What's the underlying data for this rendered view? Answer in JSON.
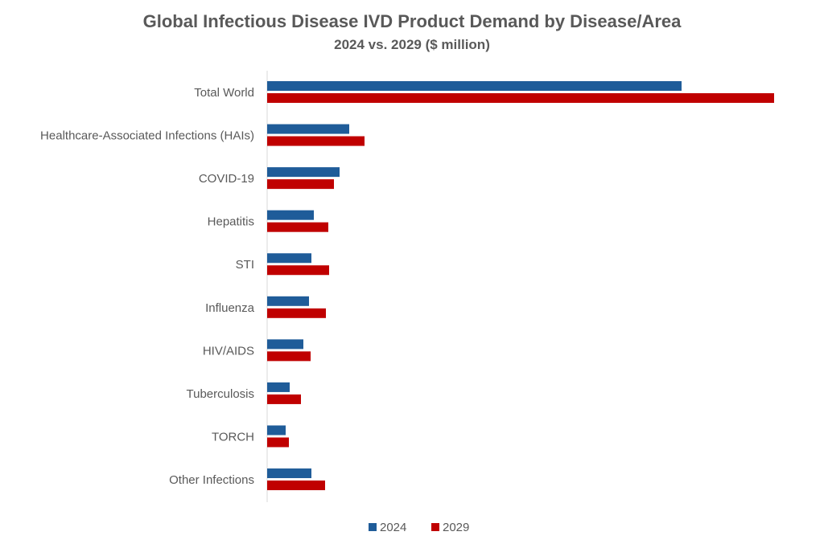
{
  "chart_data": {
    "type": "bar",
    "orientation": "horizontal",
    "title": "Global Infectious Disease IVD Product Demand by Disease/Area",
    "subtitle": "2024 vs. 2029 ($ million)",
    "xlabel": "",
    "ylabel": "",
    "value_note_hidden_axis": true,
    "categories": [
      "Total World",
      "Healthcare-Associated Infections (HAIs)",
      "COVID-19",
      "Hepatitis",
      "STI",
      "Influenza",
      "HIV/AIDS",
      "Tuberculosis",
      "TORCH",
      "Other Infections"
    ],
    "series": [
      {
        "name": "2024",
        "color": "#1F5C99",
        "values": [
          515,
          102,
          90,
          58,
          55,
          52,
          45,
          28,
          23,
          55
        ]
      },
      {
        "name": "2029",
        "color": "#C00000",
        "values": [
          630,
          121,
          83,
          76,
          77,
          73,
          54,
          42,
          27,
          72
        ]
      }
    ],
    "grid": false,
    "legend": "bottom"
  }
}
